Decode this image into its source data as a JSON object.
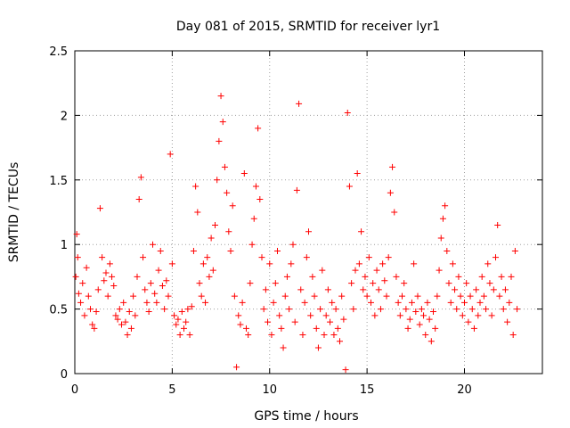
{
  "chart_data": {
    "type": "scatter",
    "title": "Day 081 of 2015, SRMTID for receiver lyr1",
    "xlabel": "GPS time / hours",
    "ylabel": "SRMTID / TECUs",
    "xlim": [
      0,
      24
    ],
    "ylim": [
      0,
      2.5
    ],
    "xticks": [
      0,
      5,
      10,
      15,
      20
    ],
    "xtick_labels": [
      "0",
      "5",
      "10",
      "15",
      "20"
    ],
    "yticks": [
      0,
      0.5,
      1,
      1.5,
      2,
      2.5
    ],
    "ytick_labels": [
      "0",
      "0.5",
      "1",
      "1.5",
      "2",
      "2.5"
    ],
    "grid": true,
    "marker": "+",
    "color": "#ff0000",
    "series": [
      {
        "name": "SRMTID",
        "points": [
          [
            0.05,
            0.75
          ],
          [
            0.1,
            1.08
          ],
          [
            0.15,
            0.9
          ],
          [
            0.2,
            0.62
          ],
          [
            0.3,
            0.55
          ],
          [
            0.4,
            0.7
          ],
          [
            0.5,
            0.45
          ],
          [
            0.6,
            0.82
          ],
          [
            0.7,
            0.6
          ],
          [
            0.8,
            0.5
          ],
          [
            0.9,
            0.38
          ],
          [
            1.0,
            0.35
          ],
          [
            1.1,
            0.48
          ],
          [
            1.2,
            0.65
          ],
          [
            1.3,
            1.28
          ],
          [
            1.4,
            0.9
          ],
          [
            1.5,
            0.72
          ],
          [
            1.6,
            0.78
          ],
          [
            1.7,
            0.6
          ],
          [
            1.8,
            0.85
          ],
          [
            1.9,
            0.75
          ],
          [
            2.0,
            0.68
          ],
          [
            2.1,
            0.45
          ],
          [
            2.2,
            0.42
          ],
          [
            2.3,
            0.5
          ],
          [
            2.4,
            0.38
          ],
          [
            2.5,
            0.55
          ],
          [
            2.6,
            0.4
          ],
          [
            2.7,
            0.3
          ],
          [
            2.8,
            0.48
          ],
          [
            2.9,
            0.35
          ],
          [
            3.0,
            0.6
          ],
          [
            3.1,
            0.45
          ],
          [
            3.2,
            0.75
          ],
          [
            3.3,
            1.35
          ],
          [
            3.4,
            1.52
          ],
          [
            3.5,
            0.9
          ],
          [
            3.6,
            0.65
          ],
          [
            3.7,
            0.55
          ],
          [
            3.8,
            0.48
          ],
          [
            3.9,
            0.7
          ],
          [
            4.0,
            1.0
          ],
          [
            4.1,
            0.62
          ],
          [
            4.2,
            0.55
          ],
          [
            4.3,
            0.8
          ],
          [
            4.4,
            0.95
          ],
          [
            4.5,
            0.68
          ],
          [
            4.6,
            0.5
          ],
          [
            4.7,
            0.72
          ],
          [
            4.8,
            0.6
          ],
          [
            4.9,
            1.7
          ],
          [
            5.0,
            0.85
          ],
          [
            5.1,
            0.45
          ],
          [
            5.2,
            0.38
          ],
          [
            5.3,
            0.42
          ],
          [
            5.4,
            0.3
          ],
          [
            5.5,
            0.48
          ],
          [
            5.6,
            0.35
          ],
          [
            5.7,
            0.4
          ],
          [
            5.8,
            0.5
          ],
          [
            5.9,
            0.3
          ],
          [
            6.0,
            0.52
          ],
          [
            6.1,
            0.95
          ],
          [
            6.2,
            1.45
          ],
          [
            6.3,
            1.25
          ],
          [
            6.4,
            0.7
          ],
          [
            6.5,
            0.6
          ],
          [
            6.6,
            0.85
          ],
          [
            6.7,
            0.55
          ],
          [
            6.8,
            0.9
          ],
          [
            6.9,
            0.75
          ],
          [
            7.0,
            1.05
          ],
          [
            7.1,
            0.8
          ],
          [
            7.2,
            1.15
          ],
          [
            7.3,
            1.5
          ],
          [
            7.4,
            1.8
          ],
          [
            7.5,
            2.15
          ],
          [
            7.6,
            1.95
          ],
          [
            7.7,
            1.6
          ],
          [
            7.8,
            1.4
          ],
          [
            7.9,
            1.1
          ],
          [
            8.0,
            0.95
          ],
          [
            8.1,
            1.3
          ],
          [
            8.2,
            0.6
          ],
          [
            8.3,
            0.05
          ],
          [
            8.4,
            0.45
          ],
          [
            8.5,
            0.38
          ],
          [
            8.6,
            0.55
          ],
          [
            8.7,
            1.55
          ],
          [
            8.8,
            0.35
          ],
          [
            8.9,
            0.3
          ],
          [
            9.0,
            0.7
          ],
          [
            9.1,
            1.0
          ],
          [
            9.2,
            1.2
          ],
          [
            9.3,
            1.45
          ],
          [
            9.4,
            1.9
          ],
          [
            9.5,
            1.35
          ],
          [
            9.6,
            0.9
          ],
          [
            9.7,
            0.5
          ],
          [
            9.8,
            0.65
          ],
          [
            9.9,
            0.4
          ],
          [
            10.0,
            0.85
          ],
          [
            10.1,
            0.3
          ],
          [
            10.2,
            0.55
          ],
          [
            10.3,
            0.7
          ],
          [
            10.4,
            0.95
          ],
          [
            10.5,
            0.45
          ],
          [
            10.6,
            0.35
          ],
          [
            10.7,
            0.2
          ],
          [
            10.8,
            0.6
          ],
          [
            10.9,
            0.75
          ],
          [
            11.0,
            0.5
          ],
          [
            11.1,
            0.85
          ],
          [
            11.2,
            1.0
          ],
          [
            11.3,
            0.4
          ],
          [
            11.4,
            1.42
          ],
          [
            11.5,
            2.09
          ],
          [
            11.6,
            0.65
          ],
          [
            11.7,
            0.3
          ],
          [
            11.8,
            0.55
          ],
          [
            11.9,
            0.9
          ],
          [
            12.0,
            1.1
          ],
          [
            12.1,
            0.45
          ],
          [
            12.2,
            0.75
          ],
          [
            12.3,
            0.6
          ],
          [
            12.4,
            0.35
          ],
          [
            12.5,
            0.2
          ],
          [
            12.6,
            0.5
          ],
          [
            12.7,
            0.8
          ],
          [
            12.8,
            0.3
          ],
          [
            12.9,
            0.45
          ],
          [
            13.0,
            0.65
          ],
          [
            13.1,
            0.4
          ],
          [
            13.2,
            0.55
          ],
          [
            13.3,
            0.3
          ],
          [
            13.4,
            0.5
          ],
          [
            13.5,
            0.35
          ],
          [
            13.6,
            0.25
          ],
          [
            13.7,
            0.6
          ],
          [
            13.8,
            0.42
          ],
          [
            13.9,
            0.03
          ],
          [
            14.0,
            2.02
          ],
          [
            14.1,
            1.45
          ],
          [
            14.2,
            0.7
          ],
          [
            14.3,
            0.5
          ],
          [
            14.4,
            0.8
          ],
          [
            14.5,
            1.55
          ],
          [
            14.6,
            0.85
          ],
          [
            14.7,
            1.1
          ],
          [
            14.8,
            0.65
          ],
          [
            14.9,
            0.75
          ],
          [
            15.0,
            0.6
          ],
          [
            15.1,
            0.9
          ],
          [
            15.2,
            0.55
          ],
          [
            15.3,
            0.7
          ],
          [
            15.4,
            0.45
          ],
          [
            15.5,
            0.8
          ],
          [
            15.6,
            0.65
          ],
          [
            15.7,
            0.5
          ],
          [
            15.8,
            0.85
          ],
          [
            15.9,
            0.72
          ],
          [
            16.0,
            0.6
          ],
          [
            16.1,
            0.9
          ],
          [
            16.2,
            1.4
          ],
          [
            16.3,
            1.6
          ],
          [
            16.4,
            1.25
          ],
          [
            16.5,
            0.75
          ],
          [
            16.6,
            0.55
          ],
          [
            16.7,
            0.45
          ],
          [
            16.8,
            0.6
          ],
          [
            16.9,
            0.7
          ],
          [
            17.0,
            0.5
          ],
          [
            17.1,
            0.35
          ],
          [
            17.2,
            0.42
          ],
          [
            17.3,
            0.55
          ],
          [
            17.4,
            0.85
          ],
          [
            17.5,
            0.48
          ],
          [
            17.6,
            0.6
          ],
          [
            17.7,
            0.38
          ],
          [
            17.8,
            0.5
          ],
          [
            17.9,
            0.45
          ],
          [
            18.0,
            0.3
          ],
          [
            18.1,
            0.55
          ],
          [
            18.2,
            0.42
          ],
          [
            18.3,
            0.25
          ],
          [
            18.4,
            0.48
          ],
          [
            18.5,
            0.35
          ],
          [
            18.6,
            0.6
          ],
          [
            18.7,
            0.8
          ],
          [
            18.8,
            1.05
          ],
          [
            18.9,
            1.2
          ],
          [
            19.0,
            1.3
          ],
          [
            19.1,
            0.95
          ],
          [
            19.2,
            0.7
          ],
          [
            19.3,
            0.55
          ],
          [
            19.4,
            0.85
          ],
          [
            19.5,
            0.65
          ],
          [
            19.6,
            0.5
          ],
          [
            19.7,
            0.75
          ],
          [
            19.8,
            0.6
          ],
          [
            19.9,
            0.45
          ],
          [
            20.0,
            0.55
          ],
          [
            20.1,
            0.7
          ],
          [
            20.2,
            0.4
          ],
          [
            20.3,
            0.6
          ],
          [
            20.4,
            0.5
          ],
          [
            20.5,
            0.35
          ],
          [
            20.6,
            0.65
          ],
          [
            20.7,
            0.45
          ],
          [
            20.8,
            0.55
          ],
          [
            20.9,
            0.75
          ],
          [
            21.0,
            0.6
          ],
          [
            21.1,
            0.5
          ],
          [
            21.2,
            0.85
          ],
          [
            21.3,
            0.7
          ],
          [
            21.4,
            0.45
          ],
          [
            21.5,
            0.65
          ],
          [
            21.6,
            0.9
          ],
          [
            21.7,
            1.15
          ],
          [
            21.8,
            0.6
          ],
          [
            21.9,
            0.75
          ],
          [
            22.0,
            0.5
          ],
          [
            22.1,
            0.65
          ],
          [
            22.2,
            0.4
          ],
          [
            22.3,
            0.55
          ],
          [
            22.4,
            0.75
          ],
          [
            22.5,
            0.3
          ],
          [
            22.6,
            0.95
          ],
          [
            22.7,
            0.5
          ]
        ]
      }
    ]
  }
}
